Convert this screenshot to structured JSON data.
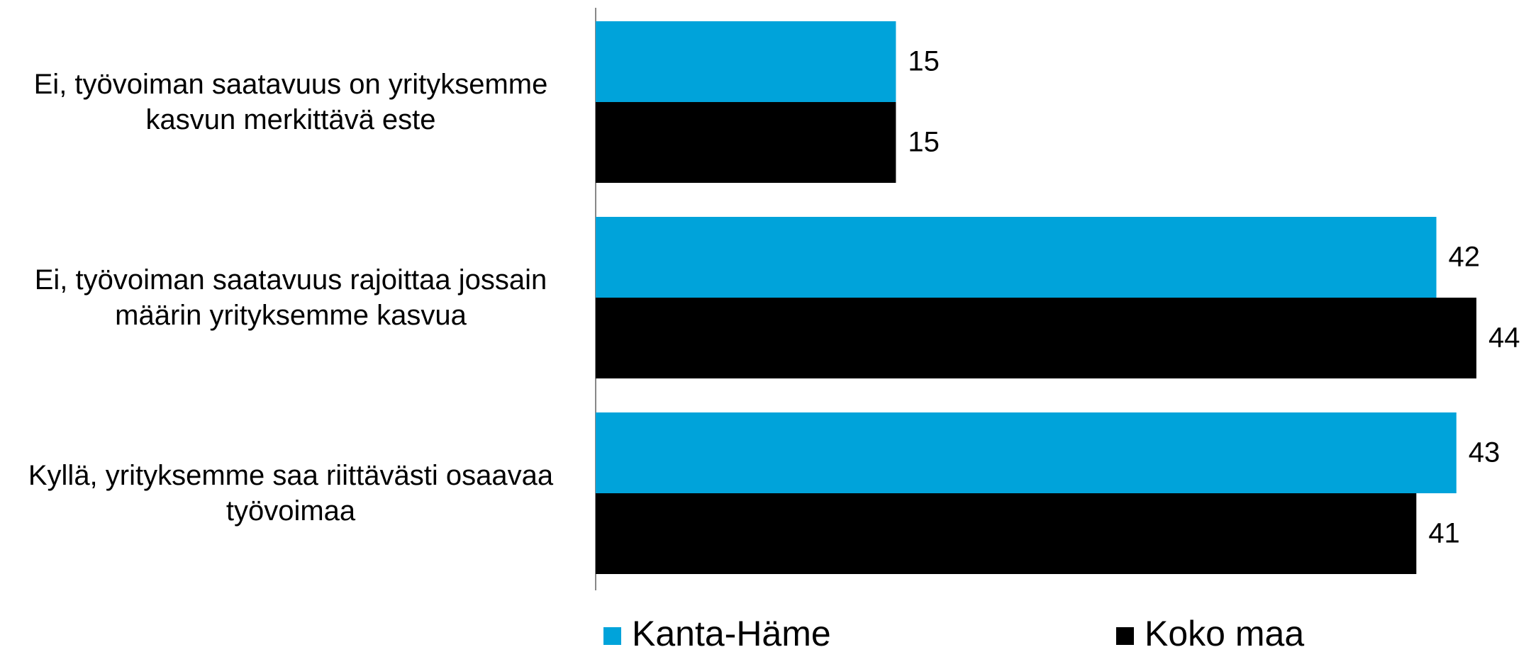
{
  "chart_data": {
    "type": "barh",
    "categories": [
      "Ei, työvoiman saatavuus on yrityksemme kasvun merkittävä este",
      "Ei, työvoiman saatavuus rajoittaa jossain määrin yrityksemme kasvua",
      "Kyllä, yrityksemme saa riittävästi osaavaa työvoimaa"
    ],
    "series": [
      {
        "name": "Kanta-Häme",
        "color": "#00a3da",
        "values": [
          15,
          42,
          43
        ]
      },
      {
        "name": "Koko maa",
        "color": "#000000",
        "values": [
          15,
          44,
          41
        ]
      }
    ],
    "legend": "bottom"
  }
}
